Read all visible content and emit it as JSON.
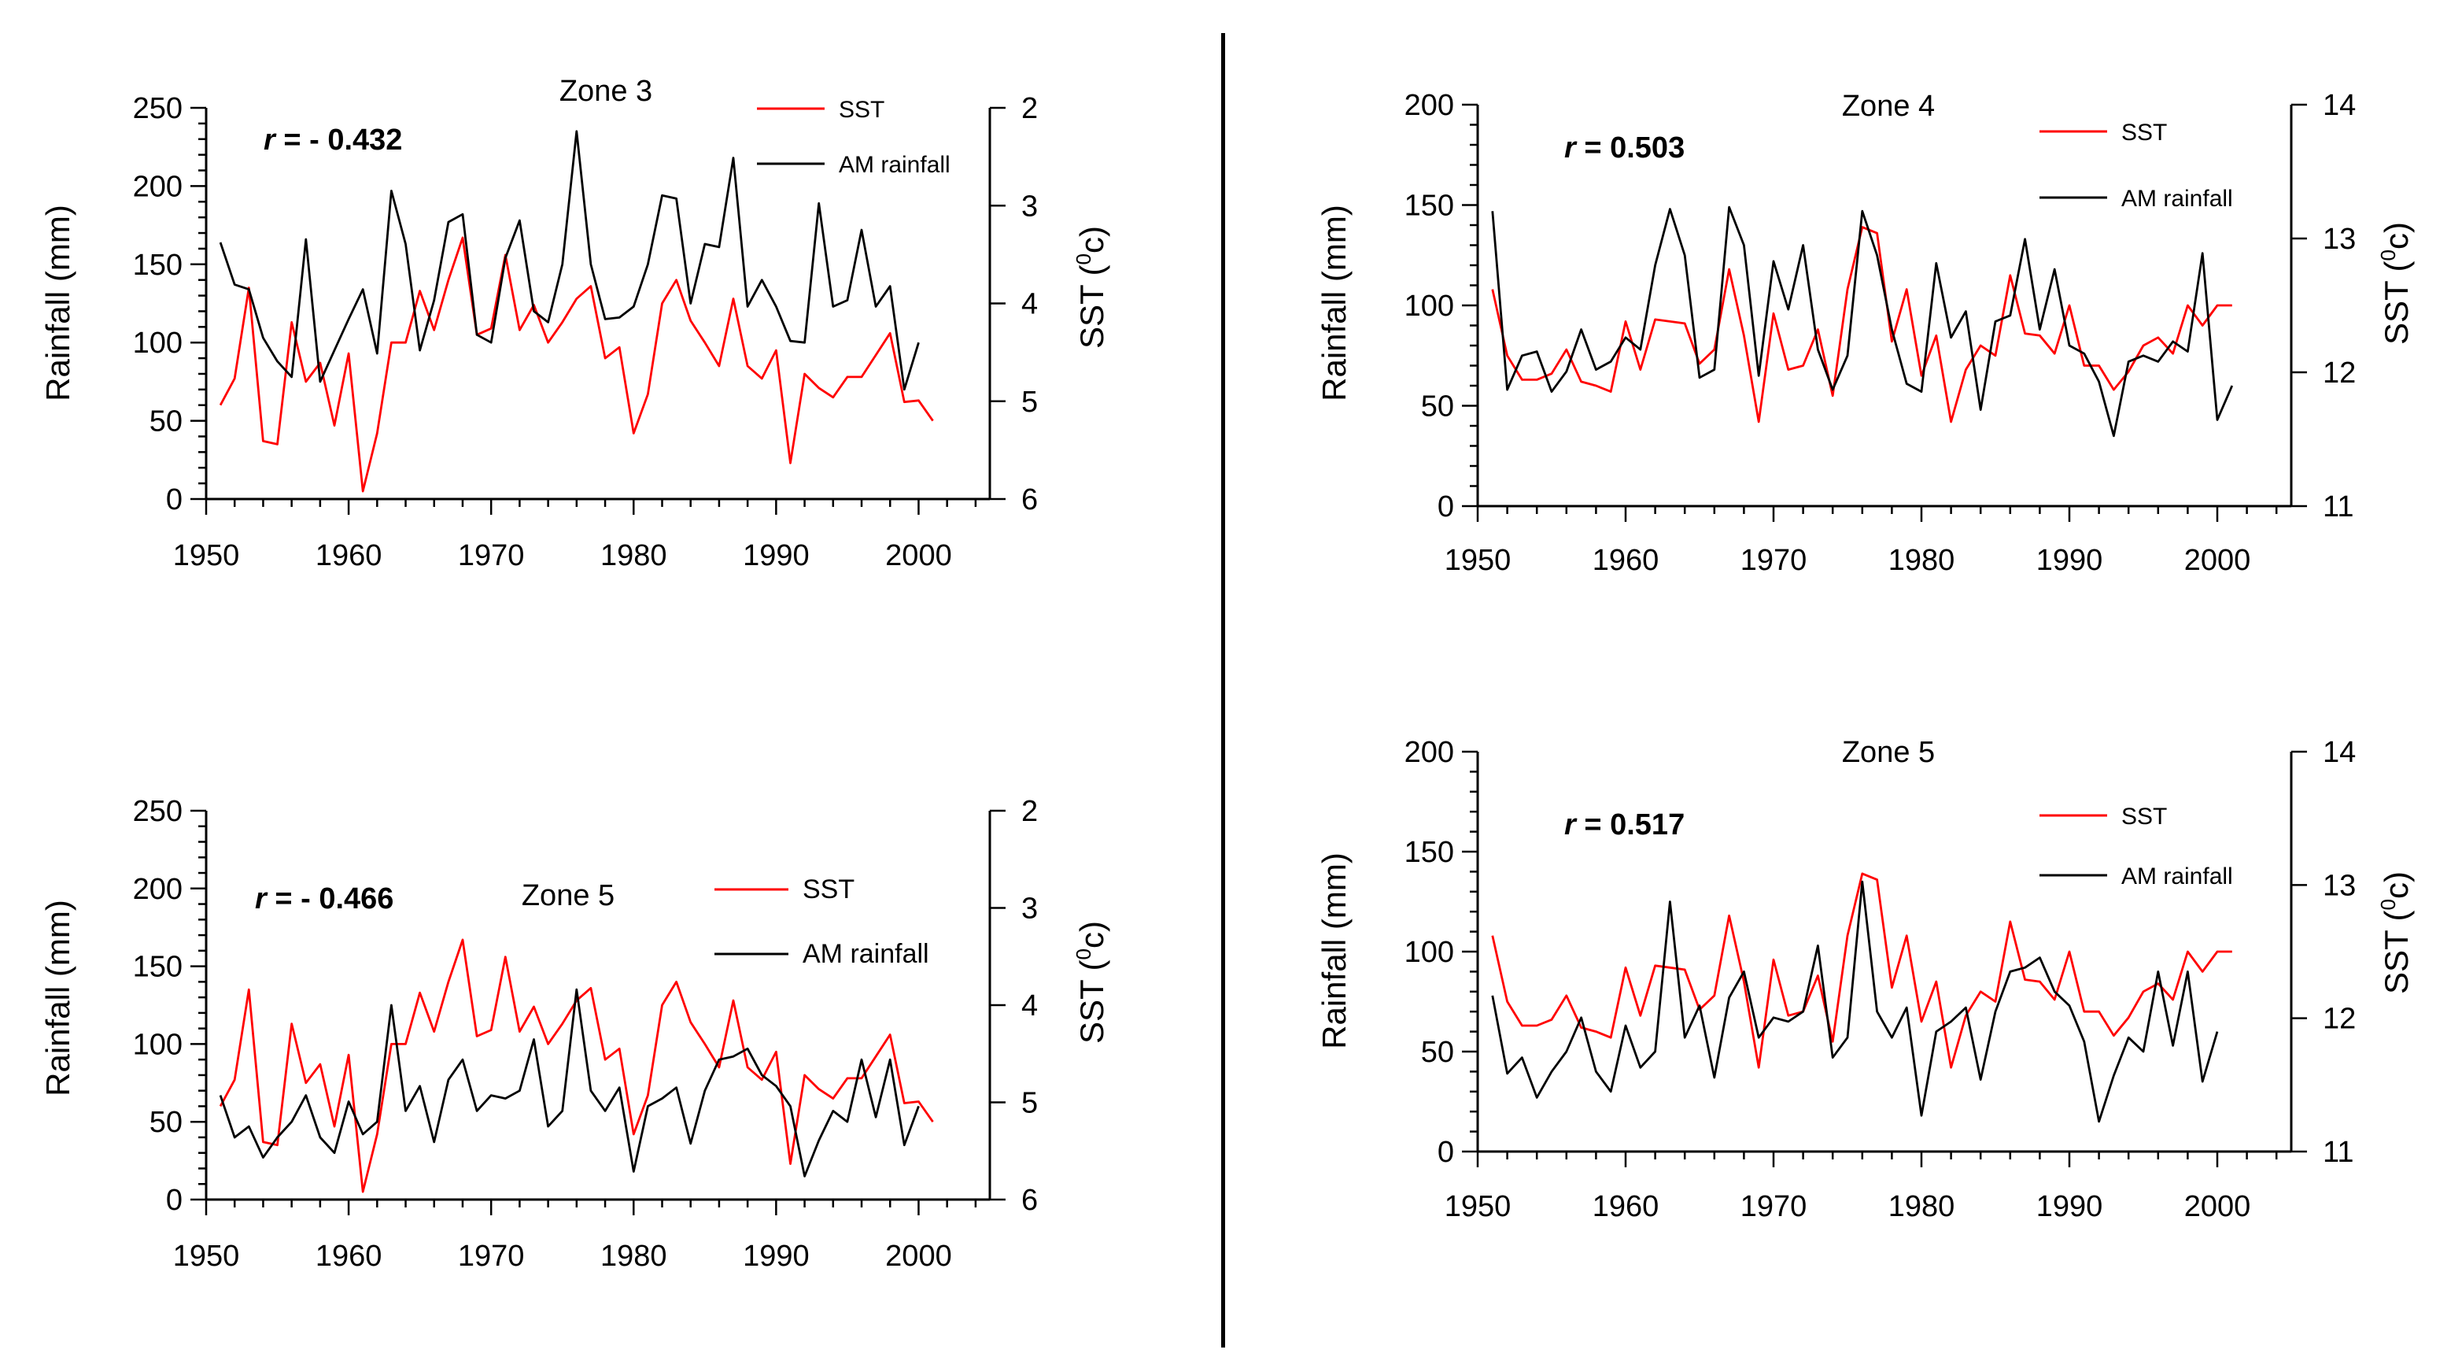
{
  "figure": {
    "colors": {
      "sst": "#ff0000",
      "rainfall": "#000000",
      "axis": "#000000"
    },
    "icons": {
      "divider": "vertical-divider-line"
    }
  },
  "chart_data": [
    {
      "id": "panel-top-left",
      "type": "line",
      "title": "Zone 3",
      "annotation": {
        "label": "r",
        "value_text": " = - 0.432"
      },
      "xlabel": "",
      "ylabel": "Rainfall (mm)",
      "y2label": "SST (",
      "y2label_sup": "0",
      "y2label_unit": "c)",
      "xlim": [
        1950,
        2005
      ],
      "ylim": [
        0,
        250
      ],
      "y2lim": [
        2,
        6
      ],
      "y2_inverted": true,
      "xticks": [
        1950,
        1960,
        1970,
        1980,
        1990,
        2000
      ],
      "yticks": [
        0,
        50,
        100,
        150,
        200,
        250
      ],
      "y2ticks": [
        2,
        3,
        4,
        5,
        6
      ],
      "legend": [
        {
          "name": "SST",
          "color": "#ff0000"
        },
        {
          "name": "AM rainfall",
          "color": "#000000"
        }
      ],
      "legend_font": 30,
      "x": [
        1951,
        1952,
        1953,
        1954,
        1955,
        1956,
        1957,
        1958,
        1959,
        1960,
        1961,
        1962,
        1963,
        1964,
        1965,
        1966,
        1967,
        1968,
        1969,
        1970,
        1971,
        1972,
        1973,
        1974,
        1975,
        1976,
        1977,
        1978,
        1979,
        1980,
        1981,
        1982,
        1983,
        1984,
        1985,
        1986,
        1987,
        1988,
        1989,
        1990,
        1991,
        1992,
        1993,
        1994,
        1995,
        1996,
        1997,
        1998,
        1999,
        2000,
        2001
      ],
      "series": [
        {
          "name": "SST",
          "axis": "y",
          "color": "#ff0000",
          "values": [
            60,
            77,
            135,
            37,
            35,
            113,
            75,
            87,
            47,
            93,
            5,
            42,
            100,
            100,
            133,
            108,
            140,
            167,
            105,
            109,
            156,
            108,
            124,
            100,
            113,
            128,
            136,
            90,
            97,
            42,
            67,
            125,
            140,
            114,
            100,
            85,
            128,
            85,
            77,
            95,
            23,
            80,
            71,
            65,
            78,
            78,
            92,
            106,
            62,
            63,
            50
          ]
        },
        {
          "name": "AM rainfall",
          "axis": "y",
          "color": "#000000",
          "values": [
            164,
            137,
            134,
            103,
            88,
            78,
            166,
            75,
            95,
            115,
            134,
            93,
            197,
            163,
            95,
            127,
            177,
            182,
            105,
            100,
            154,
            178,
            120,
            113,
            150,
            235,
            150,
            115,
            116,
            123,
            150,
            194,
            192,
            125,
            163,
            161,
            218,
            123,
            140,
            123,
            101,
            100,
            189,
            123,
            127,
            172,
            123,
            136,
            70,
            100,
            null
          ]
        }
      ]
    },
    {
      "id": "panel-top-right",
      "type": "line",
      "title": "Zone 4",
      "annotation": {
        "label": "r",
        "value_text": " = 0.503"
      },
      "xlabel": "",
      "ylabel": "Rainfall (mm)",
      "y2label": "SST (",
      "y2label_sup": "0",
      "y2label_unit": "c)",
      "xlim": [
        1950,
        2005
      ],
      "ylim": [
        0,
        200
      ],
      "y2lim": [
        11,
        14
      ],
      "y2_inverted": false,
      "xticks": [
        1950,
        1960,
        1970,
        1980,
        1990,
        2000
      ],
      "yticks": [
        0,
        50,
        100,
        150,
        200
      ],
      "y2ticks": [
        11,
        12,
        13,
        14
      ],
      "legend": [
        {
          "name": "SST",
          "color": "#ff0000"
        },
        {
          "name": "AM rainfall",
          "color": "#000000"
        }
      ],
      "legend_font": 30,
      "x": [
        1951,
        1952,
        1953,
        1954,
        1955,
        1956,
        1957,
        1958,
        1959,
        1960,
        1961,
        1962,
        1963,
        1964,
        1965,
        1966,
        1967,
        1968,
        1969,
        1970,
        1971,
        1972,
        1973,
        1974,
        1975,
        1976,
        1977,
        1978,
        1979,
        1980,
        1981,
        1982,
        1983,
        1984,
        1985,
        1986,
        1987,
        1988,
        1989,
        1990,
        1991,
        1992,
        1993,
        1994,
        1995,
        1996,
        1997,
        1998,
        1999,
        2000,
        2001
      ],
      "series": [
        {
          "name": "SST",
          "axis": "y",
          "color": "#ff0000",
          "values": [
            108,
            75,
            63,
            63,
            66,
            78,
            62,
            60,
            57,
            92,
            68,
            93,
            92,
            91,
            71,
            78,
            118,
            85,
            42,
            96,
            68,
            70,
            88,
            55,
            108,
            139,
            136,
            82,
            108,
            65,
            85,
            42,
            68,
            80,
            75,
            115,
            86,
            85,
            76,
            100,
            70,
            70,
            58,
            67,
            80,
            84,
            76,
            100,
            90,
            100,
            100
          ]
        },
        {
          "name": "AM rainfall",
          "axis": "y",
          "color": "#000000",
          "values": [
            147,
            58,
            75,
            77,
            57,
            67,
            88,
            68,
            72,
            84,
            78,
            120,
            148,
            125,
            64,
            68,
            149,
            130,
            65,
            122,
            98,
            130,
            78,
            58,
            75,
            147,
            125,
            88,
            61,
            57,
            121,
            84,
            97,
            48,
            92,
            95,
            133,
            88,
            118,
            80,
            76,
            62,
            35,
            72,
            75,
            72,
            82,
            77,
            126,
            43,
            60
          ]
        }
      ]
    },
    {
      "id": "panel-bottom-left",
      "type": "line",
      "title": "Zone 5",
      "annotation": {
        "label": "r",
        "value_text": " = - 0.466"
      },
      "xlabel": "",
      "ylabel": "Rainfall (mm)",
      "y2label": "SST (",
      "y2label_sup": "0",
      "y2label_unit": "c)",
      "xlim": [
        1950,
        2005
      ],
      "ylim": [
        0,
        250
      ],
      "y2lim": [
        2,
        6
      ],
      "y2_inverted": true,
      "xticks": [
        1950,
        1960,
        1970,
        1980,
        1990,
        2000
      ],
      "yticks": [
        0,
        50,
        100,
        150,
        200,
        250
      ],
      "y2ticks": [
        2,
        3,
        4,
        5,
        6
      ],
      "legend": [
        {
          "name": "SST",
          "color": "#ff0000"
        },
        {
          "name": "AM rainfall",
          "color": "#000000"
        }
      ],
      "legend_font": 34,
      "x": [
        1951,
        1952,
        1953,
        1954,
        1955,
        1956,
        1957,
        1958,
        1959,
        1960,
        1961,
        1962,
        1963,
        1964,
        1965,
        1966,
        1967,
        1968,
        1969,
        1970,
        1971,
        1972,
        1973,
        1974,
        1975,
        1976,
        1977,
        1978,
        1979,
        1980,
        1981,
        1982,
        1983,
        1984,
        1985,
        1986,
        1987,
        1988,
        1989,
        1990,
        1991,
        1992,
        1993,
        1994,
        1995,
        1996,
        1997,
        1998,
        1999,
        2000,
        2001
      ],
      "series": [
        {
          "name": "SST",
          "axis": "y",
          "color": "#ff0000",
          "values": [
            60,
            77,
            135,
            37,
            35,
            113,
            75,
            87,
            47,
            93,
            5,
            42,
            100,
            100,
            133,
            108,
            140,
            167,
            105,
            109,
            156,
            108,
            124,
            100,
            113,
            128,
            136,
            90,
            97,
            42,
            67,
            125,
            140,
            114,
            100,
            85,
            128,
            85,
            77,
            95,
            23,
            80,
            71,
            65,
            78,
            78,
            92,
            106,
            62,
            63,
            50
          ]
        },
        {
          "name": "AM rainfall",
          "axis": "y",
          "color": "#000000",
          "values": [
            67,
            40,
            47,
            27,
            40,
            50,
            67,
            40,
            30,
            63,
            42,
            50,
            125,
            57,
            73,
            37,
            77,
            90,
            57,
            67,
            65,
            70,
            103,
            47,
            57,
            135,
            70,
            57,
            72,
            18,
            60,
            65,
            72,
            36,
            70,
            90,
            92,
            97,
            80,
            73,
            60,
            15,
            38,
            57,
            50,
            90,
            53,
            90,
            35,
            60,
            null
          ]
        }
      ]
    },
    {
      "id": "panel-bottom-right",
      "type": "line",
      "title": "Zone 5",
      "annotation": {
        "label": "r",
        "value_text": " = 0.517"
      },
      "xlabel": "",
      "ylabel": "Rainfall (mm)",
      "y2label": "SST (",
      "y2label_sup": "0",
      "y2label_unit": "c)",
      "xlim": [
        1950,
        2005
      ],
      "ylim": [
        0,
        200
      ],
      "y2lim": [
        11,
        14
      ],
      "y2_inverted": false,
      "xticks": [
        1950,
        1960,
        1970,
        1980,
        1990,
        2000
      ],
      "yticks": [
        0,
        50,
        100,
        150,
        200
      ],
      "y2ticks": [
        11,
        12,
        13,
        14
      ],
      "legend": [
        {
          "name": "SST",
          "color": "#ff0000"
        },
        {
          "name": "AM rainfall",
          "color": "#000000"
        }
      ],
      "legend_font": 30,
      "x": [
        1951,
        1952,
        1953,
        1954,
        1955,
        1956,
        1957,
        1958,
        1959,
        1960,
        1961,
        1962,
        1963,
        1964,
        1965,
        1966,
        1967,
        1968,
        1969,
        1970,
        1971,
        1972,
        1973,
        1974,
        1975,
        1976,
        1977,
        1978,
        1979,
        1980,
        1981,
        1982,
        1983,
        1984,
        1985,
        1986,
        1987,
        1988,
        1989,
        1990,
        1991,
        1992,
        1993,
        1994,
        1995,
        1996,
        1997,
        1998,
        1999,
        2000,
        2001
      ],
      "series": [
        {
          "name": "SST",
          "axis": "y",
          "color": "#ff0000",
          "values": [
            108,
            75,
            63,
            63,
            66,
            78,
            62,
            60,
            57,
            92,
            68,
            93,
            92,
            91,
            71,
            78,
            118,
            85,
            42,
            96,
            68,
            70,
            88,
            55,
            108,
            139,
            136,
            82,
            108,
            65,
            85,
            42,
            68,
            80,
            75,
            115,
            86,
            85,
            76,
            100,
            70,
            70,
            58,
            67,
            80,
            84,
            76,
            100,
            90,
            100,
            100
          ]
        },
        {
          "name": "AM rainfall",
          "axis": "y",
          "color": "#000000",
          "values": [
            78,
            39,
            47,
            27,
            40,
            50,
            67,
            40,
            30,
            63,
            42,
            50,
            125,
            57,
            73,
            37,
            77,
            90,
            57,
            67,
            65,
            70,
            103,
            47,
            57,
            135,
            70,
            57,
            72,
            18,
            60,
            65,
            72,
            36,
            70,
            90,
            92,
            97,
            80,
            73,
            55,
            15,
            38,
            57,
            50,
            90,
            53,
            90,
            35,
            60,
            null
          ]
        }
      ]
    }
  ]
}
